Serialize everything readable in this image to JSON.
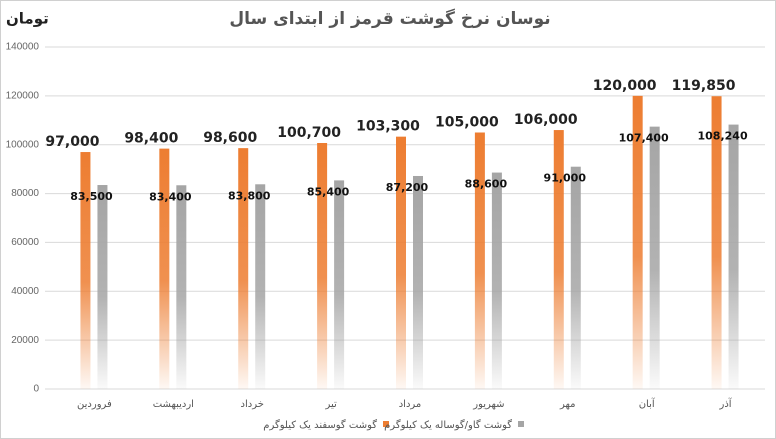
{
  "chart_data": {
    "type": "bar",
    "title": "نوسان نرخ گوشت قرمز از ابتدای سال",
    "y_label": "تومان",
    "categories": [
      "فروردین",
      "اردیبهشت",
      "خرداد",
      "تیر",
      "مرداد",
      "شهریور",
      "مهر",
      "آبان",
      "آذر"
    ],
    "series": [
      {
        "name": "گوشت گوسفند یک کیلوگرم",
        "color": "#ed7d31",
        "values": [
          97000,
          98400,
          98600,
          100700,
          103300,
          105000,
          106000,
          120000,
          119850
        ],
        "value_labels": [
          "97,000",
          "98,400",
          "98,600",
          "100,700",
          "103,300",
          "105,000",
          "106,000",
          "120,000",
          "119,850"
        ]
      },
      {
        "name": "گوشت گاو/گوساله یک کیلوگرم",
        "color": "#a5a5a5",
        "values": [
          83500,
          83400,
          83800,
          85400,
          87200,
          88600,
          91000,
          107400,
          108240
        ],
        "value_labels": [
          "83,500",
          "83,400",
          "83,800",
          "85,400",
          "87,200",
          "88,600",
          "91,000",
          "107,400",
          "108,240"
        ]
      }
    ],
    "ylim": [
      0,
      140000
    ],
    "yticks": [
      0,
      20000,
      40000,
      60000,
      80000,
      100000,
      120000,
      140000
    ],
    "grid": true,
    "legend": "bottom"
  }
}
